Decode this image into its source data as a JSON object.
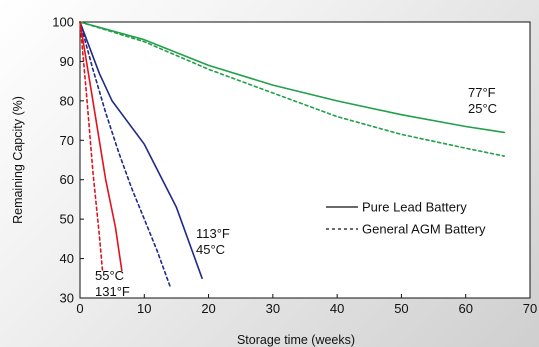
{
  "chart_data": {
    "type": "line",
    "title": "",
    "xlabel": "Storage time (weeks)",
    "ylabel": "Remaining Capcity (%)",
    "xlim": [
      0,
      70
    ],
    "ylim": [
      30,
      100
    ],
    "xticks": [
      "0",
      "10",
      "20",
      "30",
      "40",
      "50",
      "60",
      "70"
    ],
    "yticks": [
      "30",
      "40",
      "50",
      "60",
      "70",
      "80",
      "90",
      "100"
    ],
    "grid": false,
    "legend_position": "right-middle",
    "legend": [
      {
        "label": "Pure Lead Battery",
        "style": "solid"
      },
      {
        "label": "General AGM Battery",
        "style": "dashed"
      }
    ],
    "annotations": [
      {
        "lines": [
          "77°F",
          "25°C"
        ],
        "x": 57,
        "y": 80
      },
      {
        "lines": [
          "113°F",
          "45°C"
        ],
        "x": 17,
        "y": 43
      },
      {
        "lines": [
          "55°C",
          "131°F"
        ],
        "x": 2,
        "y": 34
      }
    ],
    "series": [
      {
        "temperature": "25°C",
        "battery": "Pure Lead Battery",
        "style": "solid",
        "color": "#22a04a",
        "points": [
          [
            0,
            100
          ],
          [
            10,
            95.5
          ],
          [
            20,
            89
          ],
          [
            30,
            84
          ],
          [
            40,
            80
          ],
          [
            50,
            76.5
          ],
          [
            60,
            73.5
          ],
          [
            66,
            72
          ]
        ]
      },
      {
        "temperature": "25°C",
        "battery": "General AGM Battery",
        "style": "dashed",
        "color": "#22a04a",
        "points": [
          [
            0,
            100
          ],
          [
            10,
            95
          ],
          [
            20,
            88
          ],
          [
            30,
            82
          ],
          [
            40,
            76
          ],
          [
            50,
            71.5
          ],
          [
            60,
            68
          ],
          [
            66,
            66
          ]
        ]
      },
      {
        "temperature": "45°C",
        "battery": "Pure Lead Battery",
        "style": "solid",
        "color": "#1f2a8a",
        "points": [
          [
            0,
            100
          ],
          [
            3,
            87
          ],
          [
            5,
            80
          ],
          [
            10,
            69
          ],
          [
            15,
            53
          ],
          [
            19,
            35
          ]
        ]
      },
      {
        "temperature": "45°C",
        "battery": "General AGM Battery",
        "style": "dashed",
        "color": "#1f2a8a",
        "points": [
          [
            0,
            100
          ],
          [
            2,
            88
          ],
          [
            4,
            77
          ],
          [
            6,
            67
          ],
          [
            8,
            58
          ],
          [
            10,
            50
          ],
          [
            12,
            42
          ],
          [
            14,
            33
          ]
        ]
      },
      {
        "temperature": "55°C",
        "battery": "Pure Lead Battery",
        "style": "solid",
        "color": "#e0141e",
        "points": [
          [
            0,
            100
          ],
          [
            2,
            80
          ],
          [
            4,
            60
          ],
          [
            5.5,
            48
          ],
          [
            6.5,
            37
          ]
        ]
      },
      {
        "temperature": "55°C",
        "battery": "General AGM Battery",
        "style": "dashed",
        "color": "#e0141e",
        "points": [
          [
            0,
            100
          ],
          [
            1,
            82
          ],
          [
            2,
            62
          ],
          [
            3,
            46
          ],
          [
            3.5,
            37
          ]
        ]
      }
    ]
  }
}
